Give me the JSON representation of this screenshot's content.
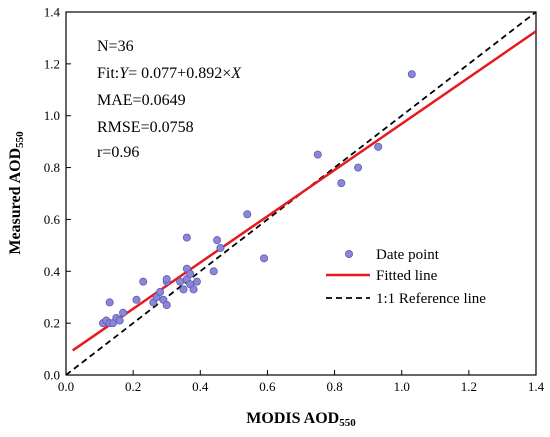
{
  "chart_data": {
    "type": "scatter",
    "xlabel": {
      "main": "MODIS AOD",
      "sub": "550"
    },
    "ylabel": {
      "main": "Measured AOD",
      "sub": "550"
    },
    "xlim": [
      0.0,
      1.4
    ],
    "ylim": [
      0.0,
      1.4
    ],
    "xticks": [
      "0.0",
      "0.2",
      "0.4",
      "0.6",
      "0.8",
      "1.0",
      "1.2",
      "1.4"
    ],
    "yticks": [
      "0.0",
      "0.2",
      "0.4",
      "0.6",
      "0.8",
      "1.0",
      "1.2",
      "1.4"
    ],
    "stats": {
      "n": "N=36",
      "fit_prefix": "Fit:",
      "fit_y": "Y",
      "fit_mid": "= 0.077+0.892×",
      "fit_x": "X",
      "mae": "MAE=0.0649",
      "rmse": "RMSE=0.0758",
      "r": "r=0.96"
    },
    "legend": {
      "position": "bottom-right",
      "points": "Date point",
      "fit": "Fitted line",
      "reference": "1:1 Reference line"
    },
    "fit_line": {
      "intercept": 0.077,
      "slope": 0.892,
      "x_range": [
        0.02,
        1.4
      ]
    },
    "reference_line": {
      "slope": 1,
      "intercept": 0
    },
    "colors": {
      "points": "#8a86d8",
      "fit": "#e8191c",
      "reference": "#000000"
    },
    "points": [
      {
        "x": 0.11,
        "y": 0.2
      },
      {
        "x": 0.12,
        "y": 0.21
      },
      {
        "x": 0.13,
        "y": 0.2
      },
      {
        "x": 0.13,
        "y": 0.28
      },
      {
        "x": 0.14,
        "y": 0.2
      },
      {
        "x": 0.15,
        "y": 0.22
      },
      {
        "x": 0.16,
        "y": 0.21
      },
      {
        "x": 0.17,
        "y": 0.24
      },
      {
        "x": 0.21,
        "y": 0.29
      },
      {
        "x": 0.23,
        "y": 0.36
      },
      {
        "x": 0.26,
        "y": 0.28
      },
      {
        "x": 0.27,
        "y": 0.3
      },
      {
        "x": 0.28,
        "y": 0.32
      },
      {
        "x": 0.29,
        "y": 0.29
      },
      {
        "x": 0.3,
        "y": 0.36
      },
      {
        "x": 0.3,
        "y": 0.37
      },
      {
        "x": 0.3,
        "y": 0.27
      },
      {
        "x": 0.34,
        "y": 0.36
      },
      {
        "x": 0.35,
        "y": 0.33
      },
      {
        "x": 0.36,
        "y": 0.37
      },
      {
        "x": 0.36,
        "y": 0.41
      },
      {
        "x": 0.36,
        "y": 0.53
      },
      {
        "x": 0.37,
        "y": 0.39
      },
      {
        "x": 0.37,
        "y": 0.35
      },
      {
        "x": 0.38,
        "y": 0.33
      },
      {
        "x": 0.39,
        "y": 0.36
      },
      {
        "x": 0.44,
        "y": 0.4
      },
      {
        "x": 0.45,
        "y": 0.52
      },
      {
        "x": 0.46,
        "y": 0.49
      },
      {
        "x": 0.54,
        "y": 0.62
      },
      {
        "x": 0.59,
        "y": 0.45
      },
      {
        "x": 0.75,
        "y": 0.85
      },
      {
        "x": 0.82,
        "y": 0.74
      },
      {
        "x": 0.87,
        "y": 0.8
      },
      {
        "x": 0.93,
        "y": 0.88
      },
      {
        "x": 1.03,
        "y": 1.16
      }
    ]
  }
}
